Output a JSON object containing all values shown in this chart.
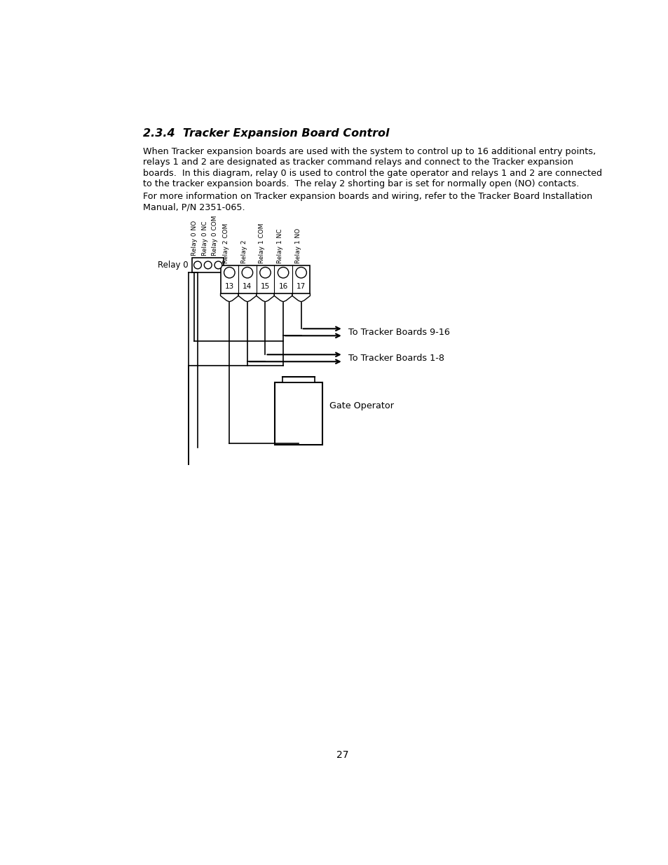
{
  "title": "2.3.4  Tracker Expansion Board Control",
  "lines_p1": [
    "When Tracker expansion boards are used with the system to control up to 16 additional entry points,",
    "relays 1 and 2 are designated as tracker command relays and connect to the Tracker expansion",
    "boards.  In this diagram, relay 0 is used to control the gate operator and relays 1 and 2 are connected",
    "to the tracker expansion boards.  The relay 2 shorting bar is set for normally open (NO) contacts."
  ],
  "lines_p2": [
    "For more information on Tracker expansion boards and wiring, refer to the Tracker Board Installation",
    "Manual, P/N 2351-065."
  ],
  "page_number": "27",
  "relay0_label": "Relay 0",
  "relay0_terminals": [
    "Relay 0 NO",
    "Relay 0 NC",
    "Relay 0 COM"
  ],
  "connector_labels": [
    "Relay 2 COM",
    "Relay 2",
    "Relay 1 COM",
    "Relay 1 NC",
    "Relay 1 NO"
  ],
  "connector_numbers": [
    "13",
    "14",
    "15",
    "16",
    "17"
  ],
  "arrow_label1": "To Tracker Boards 9-16",
  "arrow_label2": "To Tracker Boards 1-8",
  "gate_label": "Gate Operator",
  "bg_color": "#ffffff",
  "text_color": "#000000",
  "line_color": "#000000"
}
